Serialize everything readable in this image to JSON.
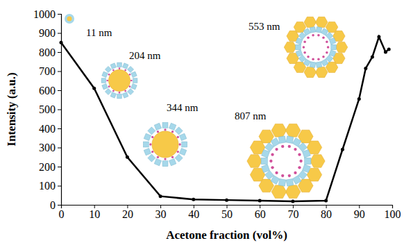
{
  "chart_data": {
    "type": "line",
    "x": [
      0,
      10,
      20,
      30,
      40,
      50,
      60,
      70,
      80,
      85,
      90,
      92,
      94,
      96,
      98,
      99
    ],
    "values": [
      850,
      610,
      250,
      45,
      28,
      25,
      22,
      18,
      22,
      290,
      555,
      715,
      775,
      880,
      800,
      815
    ],
    "color": "#000000",
    "marker": "circle",
    "grid": false,
    "xlim": [
      0,
      100
    ],
    "xticks": [
      0,
      10,
      20,
      30,
      40,
      50,
      60,
      70,
      80,
      90,
      100
    ],
    "ylim": [
      0,
      1000
    ],
    "yticks": [
      0,
      100,
      200,
      300,
      400,
      500,
      600,
      700,
      800,
      900,
      1000
    ],
    "x_label": "Acetone fraction (vol%)",
    "y_label": "Intensity (a.u.)",
    "annotations": [
      {
        "text": "11 nm"
      },
      {
        "text": "204 nm"
      },
      {
        "text": "344 nm"
      },
      {
        "text": "553 nm"
      },
      {
        "text": "807 nm"
      }
    ]
  }
}
